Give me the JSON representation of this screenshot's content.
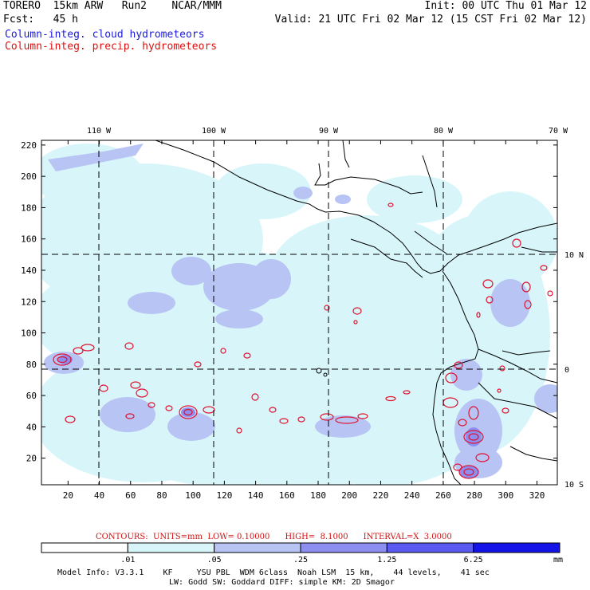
{
  "header": {
    "line1_left": "TORERO  15km ARW   Run2    NCAR/MMM",
    "line1_right": "Init: 00 UTC Thu 01 Mar 12",
    "line2_left": "Fcst:   45 h",
    "line2_right": "Valid: 21 UTC Fri 02 Mar 12 (15 CST Fri 02 Mar 12)",
    "field1": "Column-integ. cloud hydrometeors",
    "field2": "Column-integ. precip. hydrometeors",
    "field1_color": "#1a1adc",
    "field2_color": "#e01010"
  },
  "map": {
    "top_lon_labels": [
      "110 W",
      "100 W",
      "90 W",
      "80 W",
      "70 W"
    ],
    "right_lat_labels": [
      "10 N",
      "0",
      "10 S"
    ],
    "x_ticks": [
      "20",
      "40",
      "60",
      "80",
      "100",
      "120",
      "140",
      "160",
      "180",
      "200",
      "220",
      "240",
      "260",
      "280",
      "300",
      "320"
    ],
    "y_ticks": [
      "20",
      "40",
      "60",
      "80",
      "100",
      "120",
      "140",
      "160",
      "180",
      "200",
      "220"
    ]
  },
  "contours_line": {
    "text": "CONTOURS:  UNITS=mm  LOW= 0.10000      HIGH=  8.1000      INTERVAL=X  3.0000",
    "color": "#d01010"
  },
  "colorbar": {
    "labels": [
      ".01",
      ".05",
      ".25",
      "1.25",
      "6.25"
    ],
    "unit": "mm",
    "colors": [
      "#ffffff",
      "#d8f6fa",
      "#b8c4f4",
      "#8c8ef0",
      "#5a5af0",
      "#1414e8"
    ]
  },
  "footer": {
    "line1": "Model Info: V3.3.1    KF     YSU PBL  WDM 6class  Noah LSM  15 km,    44 levels,    41 sec",
    "line2": "LW: Godd SW: Goddard DIFF: simple KM: 2D Smagor"
  }
}
